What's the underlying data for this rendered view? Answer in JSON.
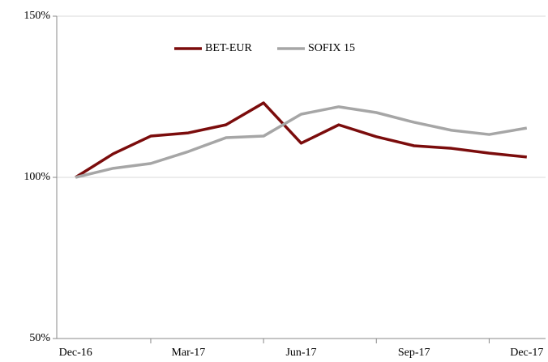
{
  "chart_data": {
    "type": "line",
    "categories": [
      "Dec-16",
      null,
      null,
      "Mar-17",
      null,
      null,
      "Jun-17",
      null,
      null,
      "Sep-17",
      null,
      null,
      "Dec-17"
    ],
    "series": [
      {
        "name": "BET-EUR",
        "color": "#7b0c0c",
        "values": [
          100,
          107.3,
          112.8,
          113.8,
          116.3,
          123.1,
          110.6,
          116.3,
          112.6,
          109.8,
          109.0,
          107.5,
          106.3
        ]
      },
      {
        "name": "SOFIX 15",
        "color": "#a6a6a6",
        "values": [
          100,
          102.8,
          104.3,
          108.0,
          112.3,
          112.8,
          119.6,
          121.9,
          120.1,
          117.1,
          114.6,
          113.3,
          115.3
        ]
      }
    ],
    "ylim": [
      50,
      150
    ],
    "yticks": [
      {
        "value": 50,
        "label": "50%"
      },
      {
        "value": 100,
        "label": "100%"
      },
      {
        "value": 150,
        "label": "150%"
      }
    ],
    "grid": true,
    "legend": "top"
  }
}
